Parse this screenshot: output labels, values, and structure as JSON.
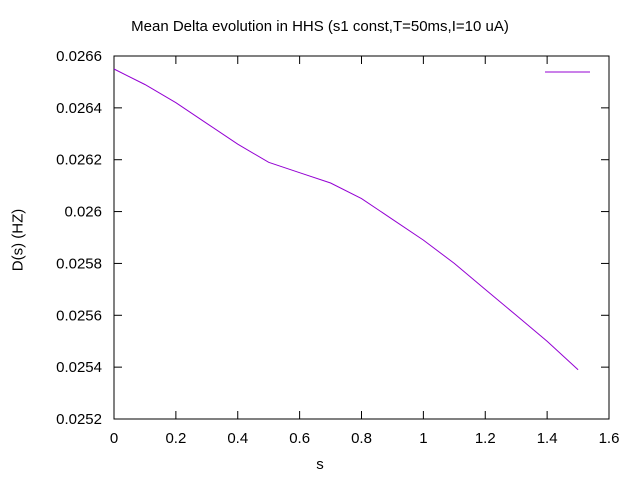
{
  "chart_data": {
    "type": "line",
    "title": "Mean Delta evolution in HHS (s1 const,T=50ms,I=10 uA)",
    "xlabel": "s",
    "ylabel": "D(s) (HZ)",
    "xlim": [
      0,
      1.6
    ],
    "ylim": [
      0.0252,
      0.0266
    ],
    "x_ticks": [
      "0",
      "0.2",
      "0.4",
      "0.6",
      "0.8",
      "1",
      "1.2",
      "1.4",
      "1.6"
    ],
    "y_ticks": [
      "0.0252",
      "0.0254",
      "0.0256",
      "0.0258",
      "0.026",
      "0.0262",
      "0.0264",
      "0.0266"
    ],
    "grid": false,
    "legend": "top-right",
    "series": [
      {
        "color": "#9400d3",
        "x": [
          0,
          0.1,
          0.2,
          0.3,
          0.4,
          0.5,
          0.6,
          0.7,
          0.8,
          0.9,
          1.0,
          1.1,
          1.2,
          1.3,
          1.4,
          1.5
        ],
        "y": [
          0.02655,
          0.02649,
          0.02642,
          0.02634,
          0.02626,
          0.02619,
          0.02615,
          0.02611,
          0.02605,
          0.02597,
          0.02589,
          0.0258,
          0.0257,
          0.0256,
          0.0255,
          0.02539
        ]
      }
    ]
  }
}
